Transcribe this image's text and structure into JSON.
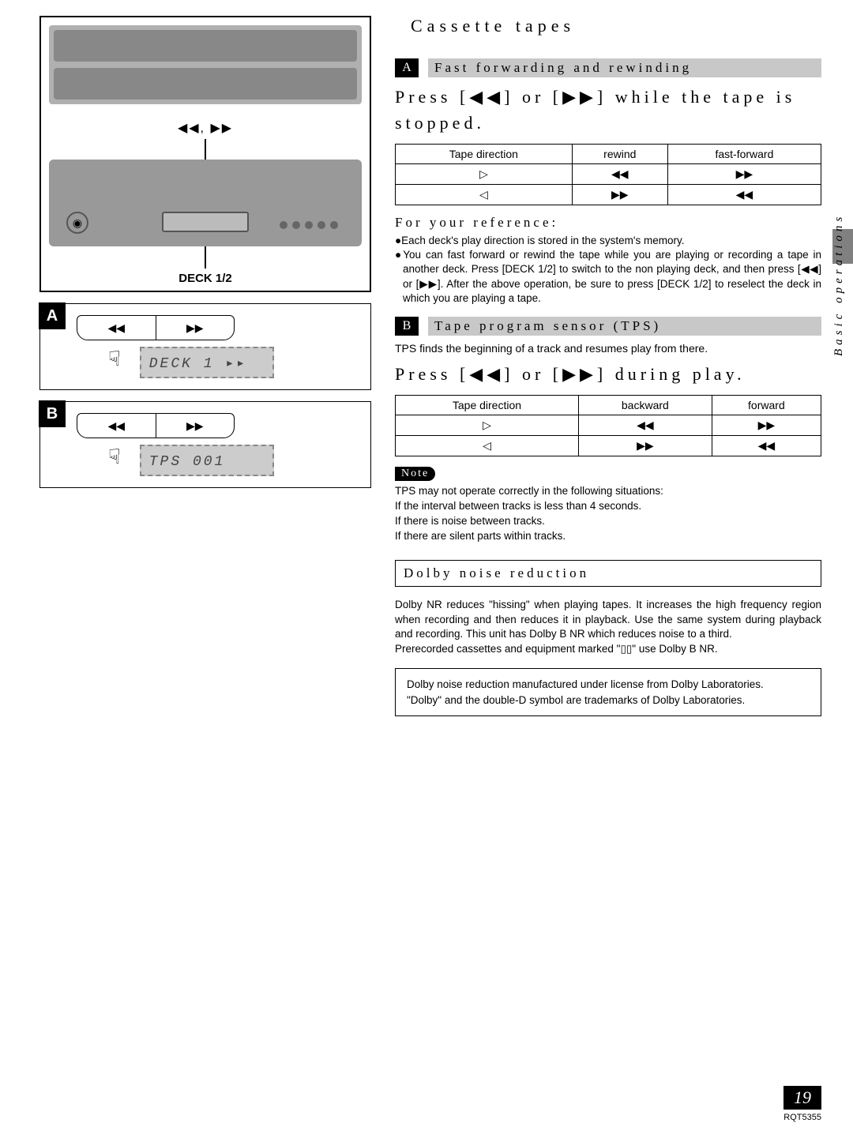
{
  "section_title": "Cassette tapes",
  "left": {
    "arrows_label": "◀◀, ▶▶",
    "deck_label": "DECK 1/2",
    "step_a": {
      "tag": "A",
      "btn_left": "◀◀",
      "btn_right": "▶▶",
      "display": "DECK 1 ▸▸"
    },
    "step_b": {
      "tag": "B",
      "btn_left": "◀◀",
      "btn_right": "▶▶",
      "display": "TPS   001"
    }
  },
  "sectionA": {
    "tag": "A",
    "band": "Fast forwarding and rewinding",
    "instr": "Press [◀◀] or [▶▶] while the tape is stopped.",
    "table": {
      "headers": [
        "Tape direction",
        "rewind",
        "fast-forward"
      ],
      "rows": [
        [
          "▷",
          "◀◀",
          "▶▶"
        ],
        [
          "◁",
          "▶▶",
          "◀◀"
        ]
      ]
    },
    "ref_head": "For your reference:",
    "bullet1": "●Each deck's play direction is stored in the system's memory.",
    "bullet2": "●You can fast forward or rewind the tape while you are playing or recording a tape in another deck. Press [DECK 1/2] to switch to the non playing deck, and then press [◀◀] or [▶▶]. After the above operation, be sure to press [DECK 1/2] to reselect the deck in which you are playing a tape."
  },
  "sectionB": {
    "tag": "B",
    "band": "Tape program sensor (TPS)",
    "tps_line": "TPS finds the beginning of a track and resumes play from there.",
    "instr": "Press [◀◀] or [▶▶] during play.",
    "table": {
      "headers": [
        "Tape direction",
        "backward",
        "forward"
      ],
      "rows": [
        [
          "▷",
          "◀◀",
          "▶▶"
        ],
        [
          "◁",
          "▶▶",
          "◀◀"
        ]
      ]
    },
    "note_tag": "Note",
    "note1": "TPS may not operate correctly in the following situations:",
    "note2": "If the interval between tracks is less than 4 seconds.",
    "note3": "If there is noise between tracks.",
    "note4": "If there are silent parts within tracks."
  },
  "dolby": {
    "title": "Dolby noise reduction",
    "p1": "Dolby NR reduces \"hissing\" when playing tapes. It increases the high frequency region when recording and then reduces it in playback. Use the same system during playback and recording. This unit has Dolby B NR which reduces noise to a third.",
    "p2": "Prerecorded cassettes and equipment marked \"▯▯\" use Dolby B NR.",
    "license1": "Dolby noise reduction manufactured under license from Dolby Laboratories.",
    "license2": "\"Dolby\" and the double-D symbol are trademarks of Dolby Laboratories."
  },
  "side_tab": "Basic operations",
  "footer": {
    "page": "19",
    "doc_id": "RQT5355"
  }
}
